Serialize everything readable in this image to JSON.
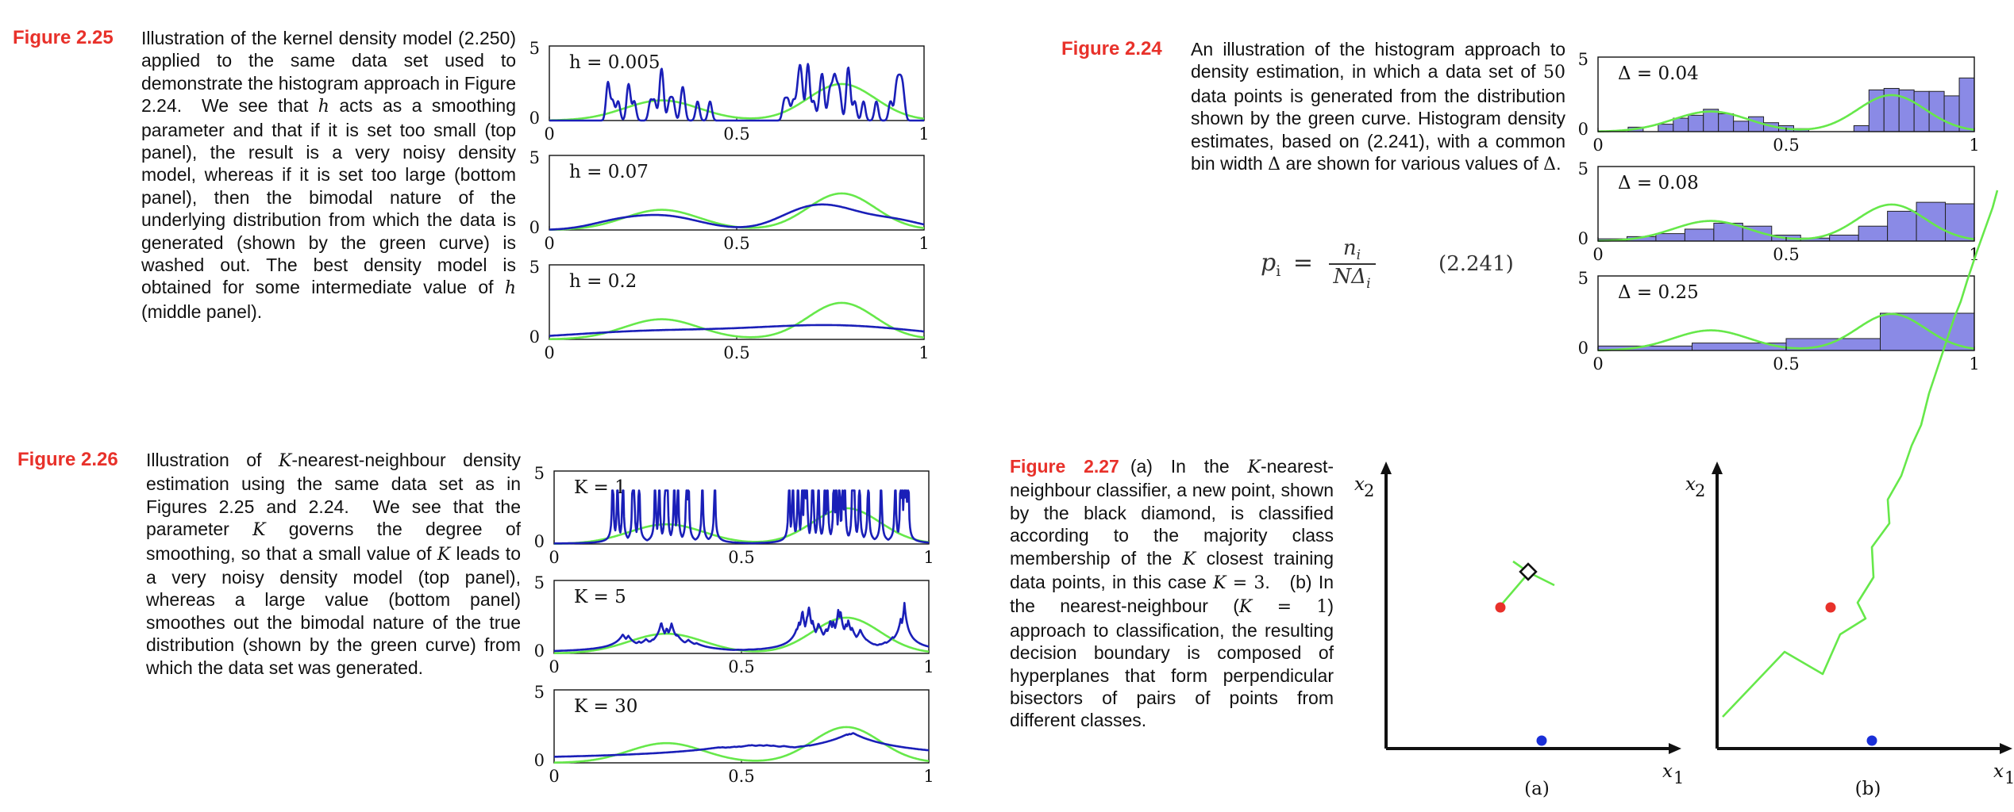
{
  "fig225": {
    "label": "Figure 2.25",
    "caption": "Illustration of the kernel density model (2.250) applied to the same data set used to demonstrate the histogram approach in Figure 2.24.  We see that h acts as a smoothing parameter and that if it is set too small (top panel), the result is a very noisy density model, whereas if it is set too large (bottom panel), then the bimodal nature of the underlying distribution from which the data is generated (shown by the green curve) is washed out. The best density model is obtained for some intermediate value of h (middle panel).",
    "panels": [
      {
        "label": "h = 0.005",
        "y_top": "5",
        "y_bottom": "0",
        "x_ticks": [
          "0",
          "0.5",
          "1"
        ]
      },
      {
        "label": "h = 0.07",
        "y_top": "5",
        "y_bottom": "0",
        "x_ticks": [
          "0",
          "0.5",
          "1"
        ]
      },
      {
        "label": "h = 0.2",
        "y_top": "5",
        "y_bottom": "0",
        "x_ticks": [
          "0",
          "0.5",
          "1"
        ]
      }
    ]
  },
  "fig224": {
    "label": "Figure 2.24",
    "caption": "An illustration of the histogram approach to density estimation, in which a data set of 50 data points is generated from the distribution shown by the green curve. Histogram density estimates, based on (2.241), with a common bin width Δ are shown for various values of Δ.",
    "equation": {
      "lhs": "p",
      "sub": "i",
      "num": "n",
      "den": "NΔ",
      "number": "(2.241)"
    },
    "panels": [
      {
        "label": "Δ = 0.04",
        "y_top": "5",
        "y_bottom": "0",
        "x_ticks": [
          "0",
          "0.5",
          "1"
        ]
      },
      {
        "label": "Δ = 0.08",
        "y_top": "5",
        "y_bottom": "0",
        "x_ticks": [
          "0",
          "0.5",
          "1"
        ]
      },
      {
        "label": "Δ = 0.25",
        "y_top": "5",
        "y_bottom": "0",
        "x_ticks": [
          "0",
          "0.5",
          "1"
        ]
      }
    ]
  },
  "fig226": {
    "label": "Figure 2.26",
    "caption": "Illustration of K-nearest-neighbour density estimation using the same data set as in Figures 2.25 and 2.24.  We see that the parameter K governs the degree of smoothing, so that a small value of K leads to a very noisy density model (top panel), whereas a large value (bottom panel) smoothes out the bimodal nature of the true distribution (shown by the green curve) from which the data set was generated.",
    "panels": [
      {
        "label": "K = 1",
        "y_top": "5",
        "y_bottom": "0",
        "x_ticks": [
          "0",
          "0.5",
          "1"
        ]
      },
      {
        "label": "K = 5",
        "y_top": "5",
        "y_bottom": "0",
        "x_ticks": [
          "0",
          "0.5",
          "1"
        ]
      },
      {
        "label": "K = 30",
        "y_top": "5",
        "y_bottom": "0",
        "x_ticks": [
          "0",
          "0.5",
          "1"
        ]
      }
    ]
  },
  "fig227": {
    "label": "Figure 2.27",
    "caption": "(a) In the K-nearest-neighbour classifier, a new point, shown by the black diamond, is classified according to the majority class membership of the K closest training data points, in this case K = 3.   (b) In the nearest-neighbour (K = 1) approach to classification, the resulting decision boundary is composed of hyperplanes that form perpendicular bisectors of pairs of points from different classes.",
    "panel_a": {
      "sublabel": "(a)",
      "xlabel": "x",
      "xsub": "1",
      "ylabel": "x",
      "ysub": "2"
    },
    "panel_b": {
      "sublabel": "(b)",
      "xlabel": "x",
      "xsub": "1",
      "ylabel": "x",
      "ysub": "2"
    }
  },
  "colors": {
    "accent": "#e8312a",
    "density": "#1a1fb8",
    "true_dist": "#66e84a",
    "bar_fill": "#8a8ae6",
    "red_point": "#e8312a",
    "blue_point": "#1a2fd8"
  },
  "chart_data": [
    {
      "type": "line",
      "name": "kernel density h=0.005",
      "xlim": [
        0,
        1
      ],
      "ylim": [
        0,
        5
      ],
      "series": [
        {
          "name": "estimate"
        },
        {
          "name": "true distribution"
        }
      ]
    },
    {
      "type": "line",
      "name": "kernel density h=0.07",
      "xlim": [
        0,
        1
      ],
      "ylim": [
        0,
        5
      ]
    },
    {
      "type": "line",
      "name": "kernel density h=0.2",
      "xlim": [
        0,
        1
      ],
      "ylim": [
        0,
        5
      ]
    },
    {
      "type": "bar",
      "name": "histogram Δ=0.04",
      "xlim": [
        0,
        1
      ],
      "ylim": [
        0,
        5
      ],
      "values": [
        0,
        0,
        0.3,
        0,
        0.5,
        0.9,
        1.1,
        1.5,
        1.2,
        0.7,
        1.0,
        0.6,
        0.4,
        0.2,
        0,
        0,
        0,
        0.4,
        2.8,
        2.9,
        2.8,
        2.7,
        2.7,
        2.4,
        3.6
      ]
    },
    {
      "type": "bar",
      "name": "histogram Δ=0.08",
      "xlim": [
        0,
        1
      ],
      "ylim": [
        0,
        5
      ],
      "values": [
        0.15,
        0.3,
        0.5,
        0.8,
        1.2,
        1.0,
        0.4,
        0.2,
        0.4,
        1.0,
        2.0,
        2.6,
        2.5
      ]
    },
    {
      "type": "bar",
      "name": "histogram Δ=0.25",
      "xlim": [
        0,
        1
      ],
      "ylim": [
        0,
        5
      ],
      "values": [
        0.3,
        0.5,
        0.8,
        2.5
      ]
    },
    {
      "type": "line",
      "name": "kNN density K=1",
      "xlim": [
        0,
        1
      ],
      "ylim": [
        0,
        5
      ]
    },
    {
      "type": "line",
      "name": "kNN density K=5",
      "xlim": [
        0,
        1
      ],
      "ylim": [
        0,
        5
      ]
    },
    {
      "type": "line",
      "name": "kNN density K=30",
      "xlim": [
        0,
        1
      ],
      "ylim": [
        0,
        5
      ]
    }
  ]
}
